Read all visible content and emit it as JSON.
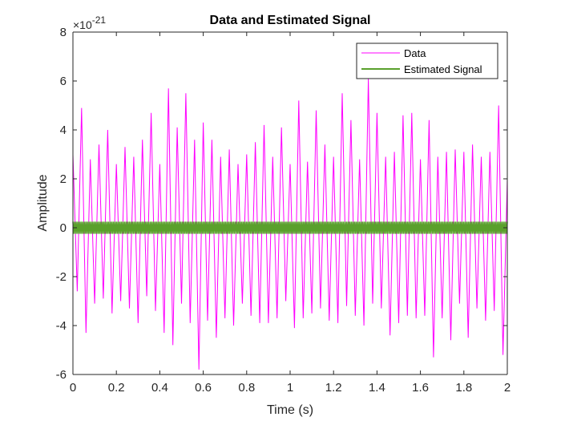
{
  "chart_data": {
    "type": "line",
    "title": "Data and Estimated Signal",
    "xlabel": "Time (s)",
    "ylabel": "Amplitude",
    "y_exponent_base": "×10",
    "y_exponent_power": "-21",
    "xlim": [
      0,
      2
    ],
    "ylim": [
      -6,
      8
    ],
    "x_ticks": [
      "0",
      "0.2",
      "0.4",
      "0.6",
      "0.8",
      "1",
      "1.2",
      "1.4",
      "1.6",
      "1.8",
      "2"
    ],
    "y_ticks": [
      "-6",
      "-4",
      "-2",
      "0",
      "2",
      "4",
      "6",
      "8"
    ],
    "grid": false,
    "legend_position": "top-right",
    "series": [
      {
        "name": "Data",
        "color": "#ff00ff",
        "description_stats": {
          "min": -5.8,
          "max": 6.1
        },
        "x": [
          0.0,
          0.02,
          0.04,
          0.06,
          0.08,
          0.1,
          0.12,
          0.14,
          0.16,
          0.18,
          0.2,
          0.22,
          0.24,
          0.26,
          0.28,
          0.3,
          0.32,
          0.34,
          0.36,
          0.38,
          0.4,
          0.42,
          0.44,
          0.46,
          0.48,
          0.5,
          0.52,
          0.54,
          0.56,
          0.58,
          0.6,
          0.62,
          0.64,
          0.66,
          0.68,
          0.7,
          0.72,
          0.74,
          0.76,
          0.78,
          0.8,
          0.82,
          0.84,
          0.86,
          0.88,
          0.9,
          0.92,
          0.94,
          0.96,
          0.98,
          1.0,
          1.02,
          1.04,
          1.06,
          1.08,
          1.1,
          1.12,
          1.14,
          1.16,
          1.18,
          1.2,
          1.22,
          1.24,
          1.26,
          1.28,
          1.3,
          1.32,
          1.34,
          1.36,
          1.38,
          1.4,
          1.42,
          1.44,
          1.46,
          1.48,
          1.5,
          1.52,
          1.54,
          1.56,
          1.58,
          1.6,
          1.62,
          1.64,
          1.66,
          1.68,
          1.7,
          1.72,
          1.74,
          1.76,
          1.78,
          1.8,
          1.82,
          1.84,
          1.86,
          1.88,
          1.9,
          1.92,
          1.94,
          1.96,
          1.98,
          2.0
        ],
        "y": [
          3.0,
          -2.6,
          4.9,
          -4.3,
          2.8,
          -3.1,
          3.4,
          -2.9,
          4.0,
          -3.5,
          2.6,
          -3.0,
          3.3,
          -3.3,
          2.9,
          -3.9,
          3.6,
          -2.8,
          4.7,
          -3.4,
          2.6,
          -4.3,
          5.7,
          -4.8,
          4.1,
          -3.1,
          5.5,
          -3.9,
          3.6,
          -5.8,
          4.3,
          -3.8,
          3.6,
          -4.5,
          2.9,
          -3.7,
          3.2,
          -4.0,
          2.6,
          -3.1,
          3.0,
          -3.6,
          3.5,
          -3.9,
          4.2,
          -3.9,
          2.9,
          -3.7,
          4.1,
          -3.0,
          2.6,
          -4.1,
          5.2,
          -3.7,
          2.7,
          -3.5,
          4.8,
          -3.3,
          3.4,
          -3.8,
          2.9,
          -3.9,
          5.5,
          -3.2,
          4.4,
          -3.6,
          2.8,
          -4.0,
          6.1,
          -3.1,
          4.7,
          -3.3,
          2.9,
          -4.4,
          3.1,
          -3.9,
          4.6,
          -3.6,
          4.7,
          -3.7,
          2.8,
          -3.6,
          4.4,
          -5.3,
          2.9,
          -3.7,
          3.1,
          -4.6,
          3.2,
          -3.1,
          3.1,
          -4.5,
          3.4,
          -3.3,
          2.9,
          -3.8,
          3.1,
          -3.4,
          5.0,
          -5.2,
          2.0
        ]
      },
      {
        "name": "Estimated Signal",
        "color": "#5aa02c",
        "amplitude": 0.25,
        "x_range": [
          0,
          2
        ]
      }
    ]
  }
}
